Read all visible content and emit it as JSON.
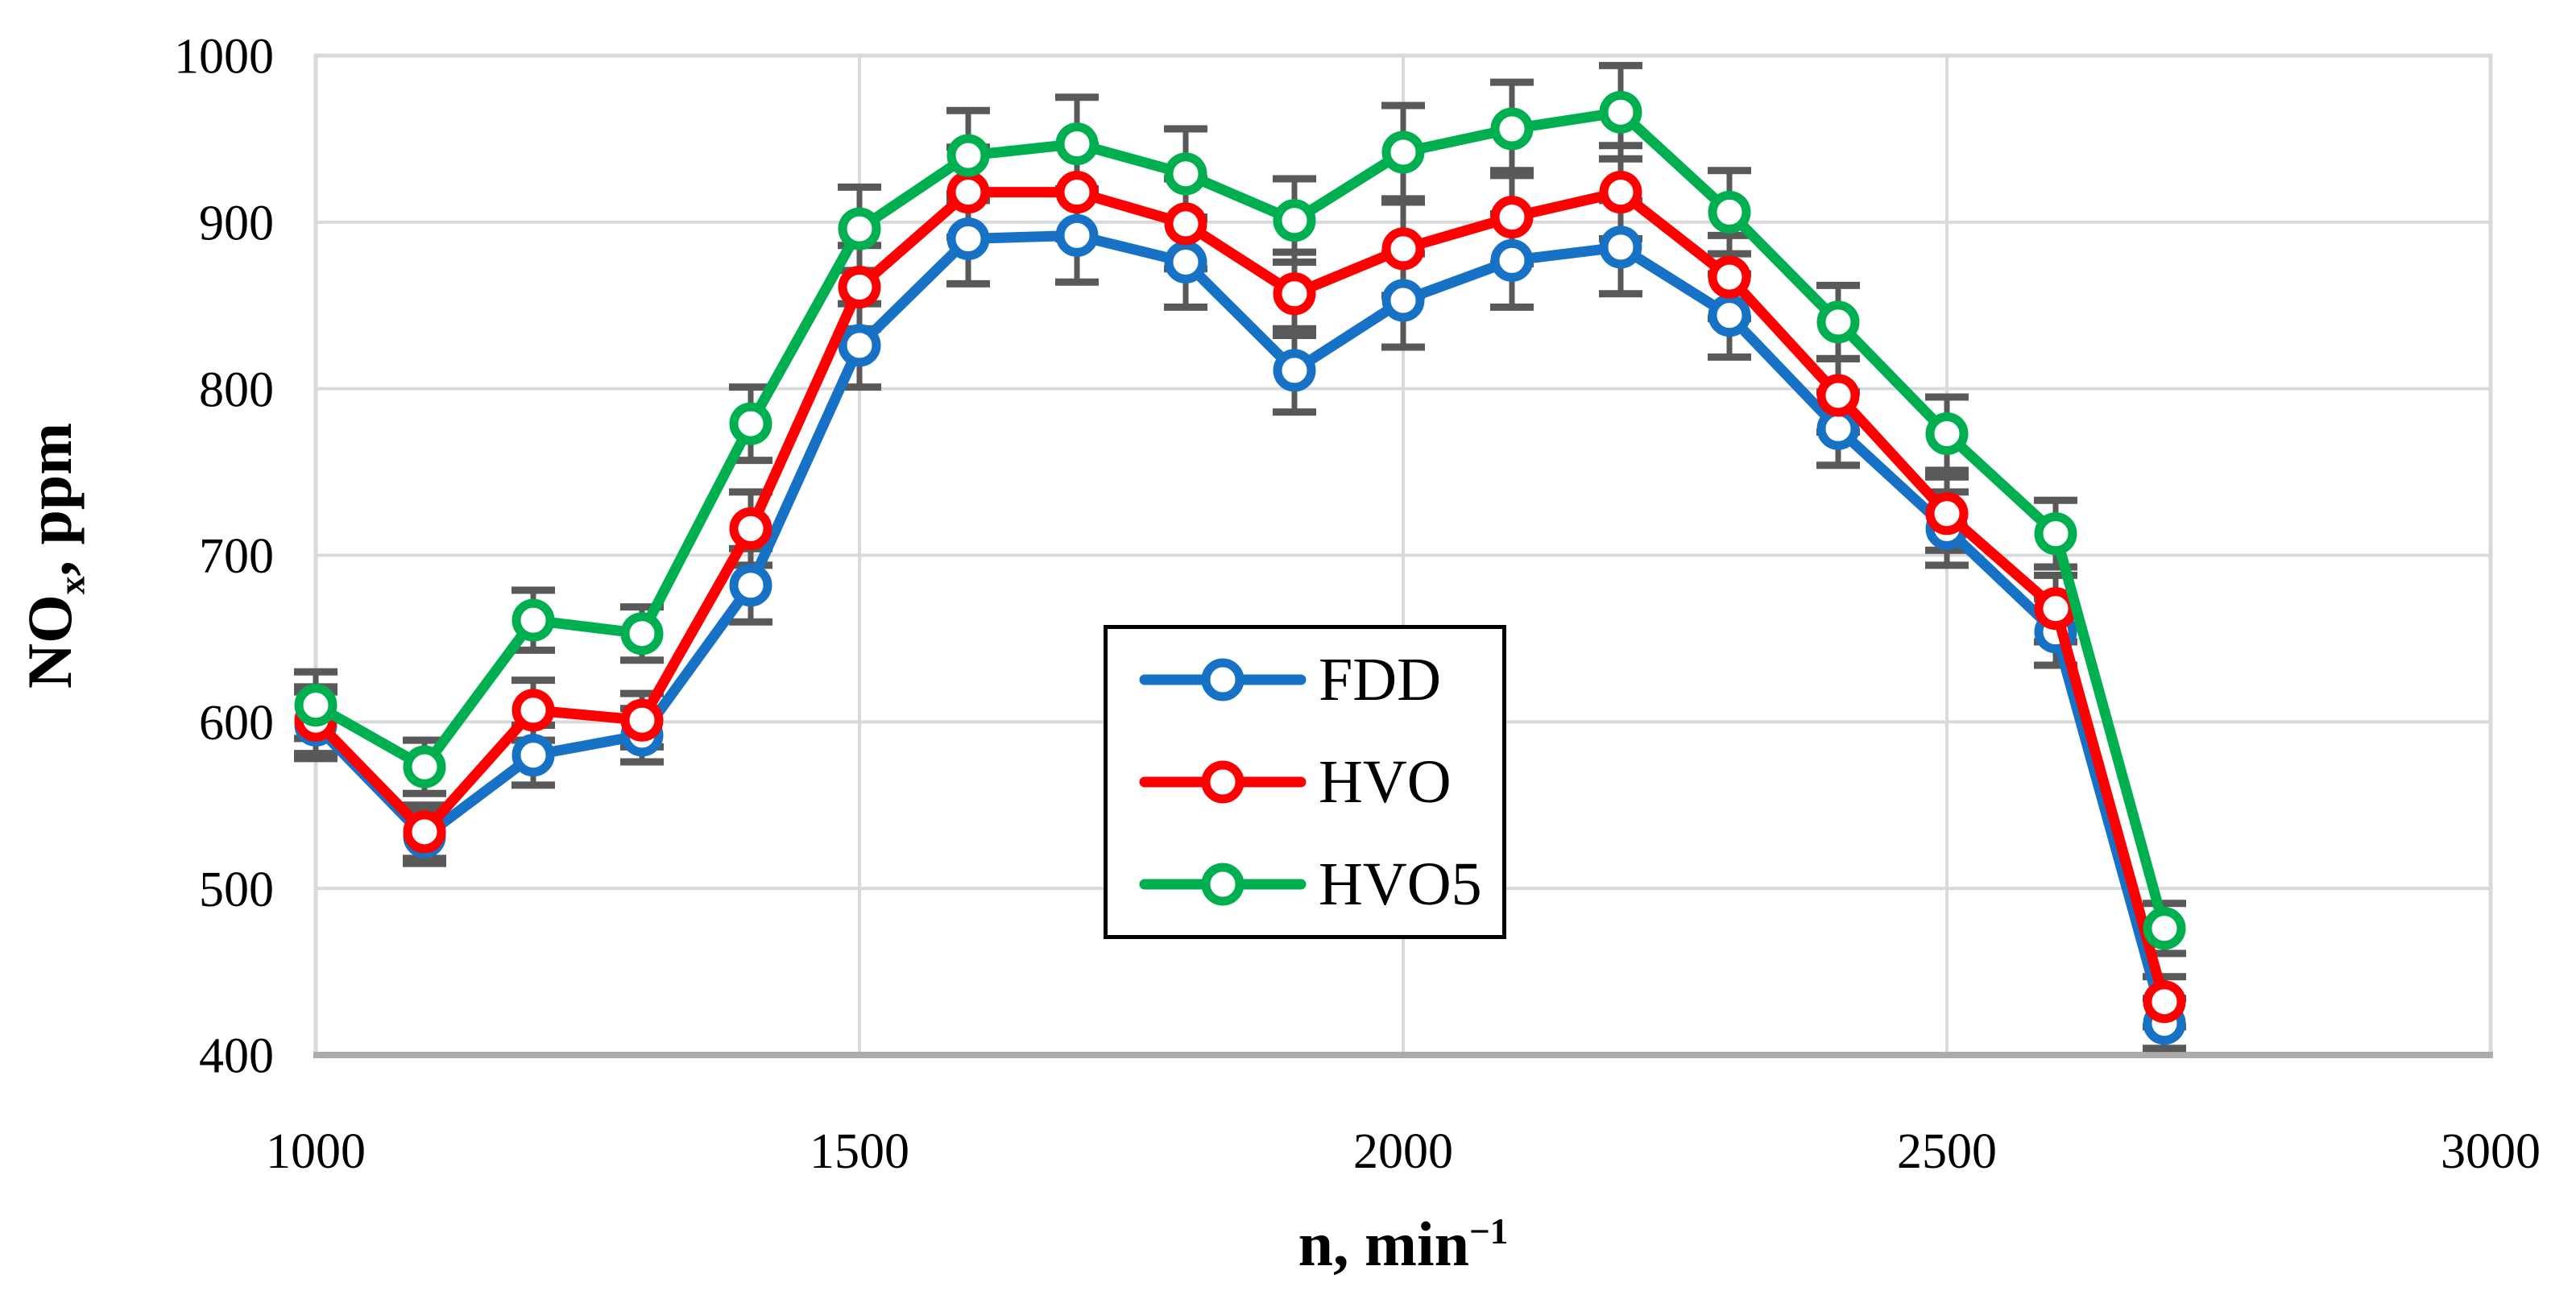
{
  "chart_data": {
    "type": "line",
    "title": "",
    "xlabel_parts": {
      "pre": "n, min",
      "sup": "−1"
    },
    "ylabel_parts": {
      "pre": "NO",
      "sub": "x",
      "post": ", ppm"
    },
    "xlim": [
      1000,
      3000
    ],
    "ylim": [
      400,
      1000
    ],
    "x_ticks": [
      1000,
      1500,
      2000,
      2500,
      3000
    ],
    "y_ticks": [
      400,
      500,
      600,
      700,
      800,
      900,
      1000
    ],
    "x_gridlines": [
      1500,
      2000,
      2500
    ],
    "grid": true,
    "legend_position": "center",
    "x": [
      1000,
      1100,
      1200,
      1300,
      1400,
      1500,
      1600,
      1700,
      1800,
      1900,
      2000,
      2100,
      2200,
      2300,
      2400,
      2500,
      2600,
      2700
    ],
    "series": [
      {
        "name": "FDD",
        "color": "#1772C6",
        "values": [
          598,
          531,
          580,
          592,
          682,
          826,
          890,
          892,
          876,
          811,
          853,
          877,
          885,
          844,
          776,
          716,
          654,
          419
        ],
        "error_y": [
          20,
          16,
          18,
          16,
          22,
          25,
          27,
          28,
          27,
          25,
          28,
          28,
          28,
          25,
          22,
          22,
          20,
          15
        ]
      },
      {
        "name": "HVO",
        "color": "#FF0000",
        "values": [
          601,
          534,
          607,
          601,
          716,
          861,
          918,
          918,
          899,
          857,
          884,
          903,
          918,
          867,
          796,
          725,
          668,
          432
        ],
        "error_y": [
          20,
          16,
          18,
          16,
          22,
          25,
          27,
          28,
          27,
          25,
          28,
          28,
          28,
          25,
          22,
          22,
          20,
          15
        ]
      },
      {
        "name": "HVO5",
        "color": "#00B050",
        "values": [
          610,
          573,
          661,
          653,
          779,
          896,
          940,
          947,
          929,
          901,
          942,
          956,
          966,
          906,
          840,
          773,
          713,
          476
        ],
        "error_y": [
          20,
          16,
          18,
          16,
          22,
          25,
          27,
          28,
          27,
          25,
          28,
          28,
          28,
          25,
          22,
          22,
          20,
          15
        ]
      }
    ],
    "colors": {
      "gridline": "#D9D9D9",
      "plot_border": "#D9D9D9",
      "bottom_axis": "#ABABAB",
      "error_bar": "#595959",
      "tick_text": "#000000"
    }
  }
}
